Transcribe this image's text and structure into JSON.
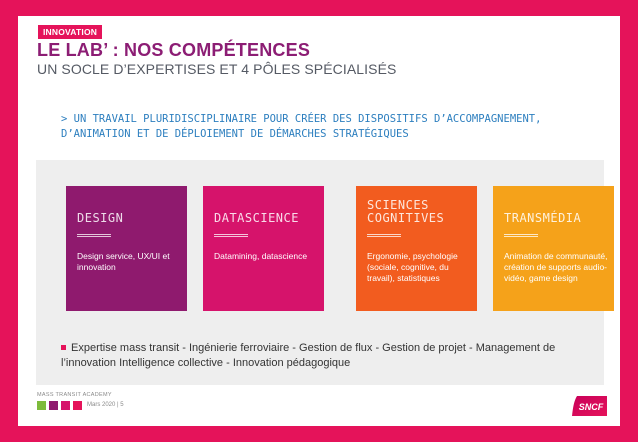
{
  "header": {
    "tag": "INNOVATION",
    "title": "LE LAB’ : NOS COMPÉTENCES",
    "subtitle": "UN SOCLE D’EXPERTISES ET 4 PÔLES SPÉCIALISÉS"
  },
  "intro": "> UN TRAVAIL PLURIDISCIPLINAIRE POUR CRÉER DES DISPOSITIFS D’ACCOMPAGNEMENT, D’ANIMATION ET DE DÉPLOIEMENT DE DÉMARCHES STRATÉGIQUES",
  "cards": [
    {
      "name": "DESIGN",
      "description": "Design service, UX/UI et innovation",
      "color": "#8f1a6e"
    },
    {
      "name": "DATASCIENCE",
      "description": "Datamining, datascience",
      "color": "#d6136b"
    },
    {
      "name_line1": "SCIENCES",
      "name_line2": "COGNITIVES",
      "description": "Ergonomie, psychologie (sociale, cognitive, du travail), statistiques",
      "color": "#f25c1f"
    },
    {
      "name": "TRANSMÉDIA",
      "description": "Animation de communauté, création de supports audio-vidéo, game design",
      "color": "#f5a21a"
    }
  ],
  "expertise": "Expertise mass transit - Ingénierie ferroviaire - Gestion de flux - Gestion de projet - Management de l’innovation Intelligence collective - Innovation pédagogique",
  "footer": {
    "label": "MASS TRANSIT ACADEMY",
    "date": "Mars 2020 | 5",
    "logo": "SNCF",
    "squares": [
      "#7dbb3c",
      "#8f1a6e",
      "#d6136b",
      "#e5135a"
    ]
  },
  "colors": {
    "accent": "#e5135a",
    "title": "#8c1d74",
    "intro": "#2d7fbf"
  }
}
